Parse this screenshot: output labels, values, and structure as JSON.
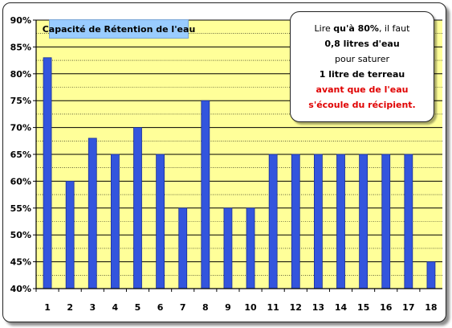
{
  "chart_data": {
    "type": "bar",
    "title": "Capacité de Rétention de l'eau",
    "categories": [
      "1",
      "2",
      "3",
      "4",
      "5",
      "6",
      "7",
      "8",
      "9",
      "10",
      "11",
      "12",
      "13",
      "14",
      "15",
      "16",
      "17",
      "18"
    ],
    "values": [
      83,
      60,
      68,
      65,
      70,
      65,
      55,
      75,
      55,
      55,
      65,
      65,
      65,
      65,
      65,
      65,
      65,
      45
    ],
    "ylim": [
      40,
      90
    ],
    "yticks": [
      "40%",
      "45%",
      "50%",
      "55%",
      "60%",
      "65%",
      "70%",
      "75%",
      "80%",
      "85%",
      "90%"
    ],
    "xlabel": "",
    "ylabel": "",
    "grid": true,
    "colors": {
      "bar": "#3355dd",
      "plot_bg": "#ffff99",
      "grid": "#000000"
    }
  },
  "note": {
    "line1_pre": "Lire ",
    "line1_bold": "qu'à 80%",
    "line1_post": ", il faut",
    "line2": "0,8 litres d'eau",
    "line3": "pour saturer",
    "line4": "1 litre de terreau",
    "line5": "avant que de l'eau",
    "line6": "s'écoule du récipient."
  }
}
